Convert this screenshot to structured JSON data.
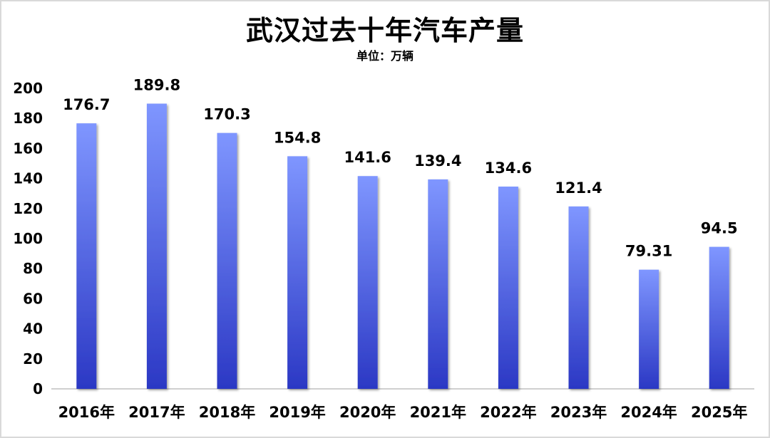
{
  "title": "武汉过去十年汽车产量",
  "subtitle": "单位：万辆",
  "colors": {
    "bar_top": "#7f96ff",
    "bar_bottom": "#2b38c4",
    "axis": "#bfbfbf"
  },
  "chart_data": {
    "type": "bar",
    "title": "武汉过去十年汽车产量",
    "subtitle": "单位：万辆",
    "categories": [
      "2016年",
      "2017年",
      "2018年",
      "2019年",
      "2020年",
      "2021年",
      "2022年",
      "2023年",
      "2024年",
      "2025年"
    ],
    "values": [
      176.7,
      189.8,
      170.3,
      154.8,
      141.6,
      139.4,
      134.6,
      121.4,
      79.31,
      94.5
    ],
    "data_labels": [
      "176.7",
      "189.8",
      "170.3",
      "154.8",
      "141.6",
      "139.4",
      "134.6",
      "121.4",
      "79.31",
      "94.5"
    ],
    "yticks": [
      "0",
      "20",
      "40",
      "60",
      "80",
      "100",
      "120",
      "140",
      "160",
      "180",
      "200"
    ],
    "ylim": [
      0,
      200
    ],
    "grid": false,
    "legend": "none"
  }
}
